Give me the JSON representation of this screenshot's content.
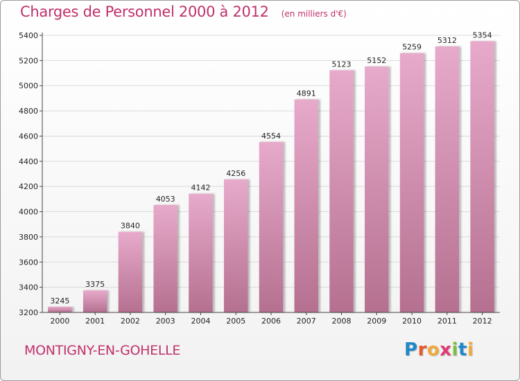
{
  "title": "Charges de Personnel 2000 à 2012",
  "subtitle": "(en milliers d'€)",
  "commune": "MONTIGNY-EN-GOHELLE",
  "logo": {
    "text": "Proxiti",
    "letter_colors": [
      "#1e88c8",
      "#e8572a",
      "#f2a93b",
      "#e03a73",
      "#7bbf3a",
      "#1e88c8",
      "#f2a93b"
    ]
  },
  "colors": {
    "title": "#c0306a",
    "bar_top": "#e7aacb",
    "bar_bottom": "#b5708f",
    "grid": "#d9d9d9"
  },
  "chart_data": {
    "type": "bar",
    "title": "Charges de Personnel 2000 à 2012",
    "subtitle": "(en milliers d'€)",
    "categories": [
      "2000",
      "2001",
      "2002",
      "2003",
      "2004",
      "2005",
      "2006",
      "2007",
      "2008",
      "2009",
      "2010",
      "2011",
      "2012"
    ],
    "values": [
      3245,
      3375,
      3840,
      4053,
      4142,
      4256,
      4554,
      4891,
      5123,
      5152,
      5259,
      5312,
      5354
    ],
    "ylim": [
      3200,
      5400
    ],
    "yticks": [
      3200,
      3400,
      3600,
      3800,
      4000,
      4200,
      4400,
      4600,
      4800,
      5000,
      5200,
      5400
    ],
    "xlabel": "",
    "ylabel": "",
    "grid": true,
    "legend": "none"
  }
}
